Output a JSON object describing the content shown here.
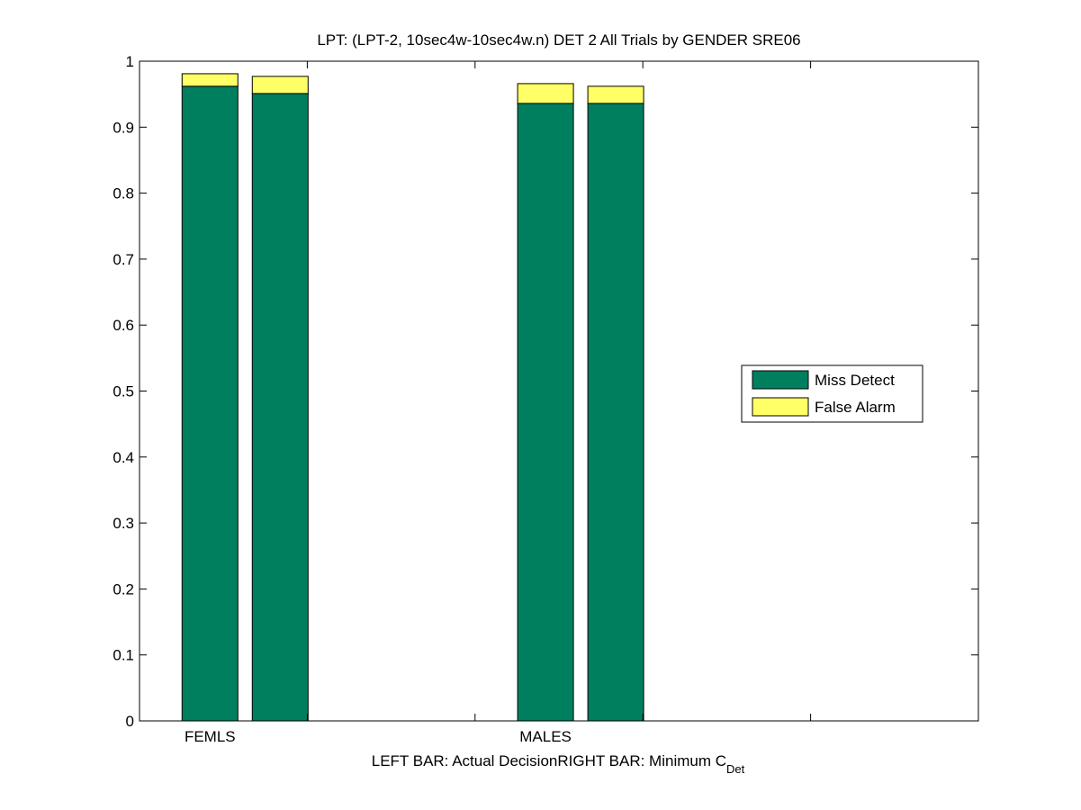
{
  "chart_data": {
    "type": "bar",
    "stacked": true,
    "title": "LPT: (LPT-2, 10sec4w-10sec4w.n) DET 2 All Trials by GENDER SRE06",
    "xlabel": {
      "left": "LEFT BAR: Actual Decision",
      "right_prefix": "RIGHT BAR: Minimum C",
      "right_subscript": "Det"
    },
    "categories": [
      "FEMLS",
      "MALES"
    ],
    "bar_roles": [
      "Actual Decision",
      "Minimum CDet"
    ],
    "series": [
      {
        "name": "Miss Detect",
        "color": "#007f5f",
        "values": [
          [
            0.962,
            0.951
          ],
          [
            0.936,
            0.936
          ]
        ]
      },
      {
        "name": "False Alarm",
        "color": "#ffff66",
        "values": [
          [
            0.019,
            0.026
          ],
          [
            0.03,
            0.026
          ]
        ]
      }
    ],
    "yticks": [
      "0",
      "0.1",
      "0.2",
      "0.3",
      "0.4",
      "0.5",
      "0.6",
      "0.7",
      "0.8",
      "0.9",
      "1"
    ],
    "ylim": [
      0,
      1
    ],
    "grid": false,
    "legend_position": "right"
  }
}
